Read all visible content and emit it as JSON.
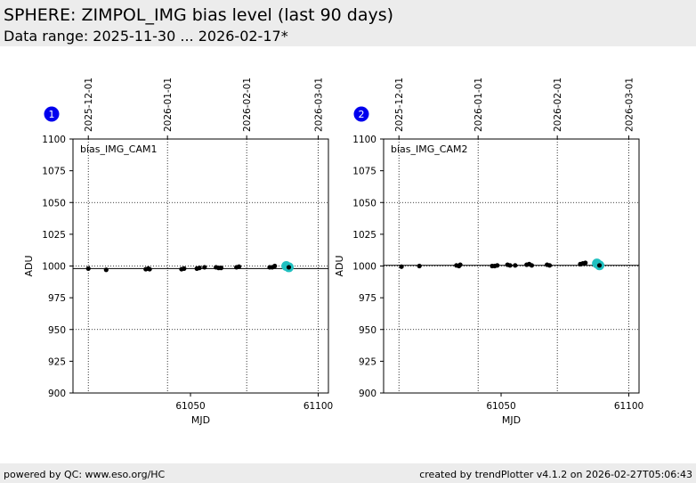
{
  "header": {
    "title": "SPHERE: ZIMPOL_IMG bias level (last 90 days)",
    "subtitle": "Data range: 2025-11-30 ... 2026-02-17*"
  },
  "footer": {
    "left": "powered by QC: www.eso.org/HC",
    "right": "created by trendPlotter v4.1.2 on 2026-02-27T05:06:43"
  },
  "colors": {
    "point": "#000000",
    "highlight": "#20c0c0",
    "badge": "#0000ee",
    "background_header": "#ececec"
  },
  "chart_data": [
    {
      "type": "scatter",
      "badge": "1",
      "label": "bias_IMG_CAM1",
      "xlabel": "MJD",
      "ylabel": "ADU",
      "xlim": [
        61004,
        61104
      ],
      "ylim": [
        900,
        1100
      ],
      "xticks": [
        61050,
        61100
      ],
      "yticks": [
        900,
        925,
        950,
        975,
        1000,
        1025,
        1050,
        1075,
        1100
      ],
      "top_axis_dates": [
        {
          "label": "2025-12-01",
          "mjd": 61010
        },
        {
          "label": "2026-01-01",
          "mjd": 61041
        },
        {
          "label": "2026-02-01",
          "mjd": 61072
        },
        {
          "label": "2026-03-01",
          "mjd": 61100
        }
      ],
      "reference_line": 998,
      "grid": "dotted",
      "points": [
        {
          "x": 61010,
          "y": 998
        },
        {
          "x": 61017,
          "y": 997
        },
        {
          "x": 61032.5,
          "y": 997.5
        },
        {
          "x": 61033.5,
          "y": 998
        },
        {
          "x": 61034,
          "y": 997.5
        },
        {
          "x": 61046.5,
          "y": 997.5
        },
        {
          "x": 61047.5,
          "y": 998
        },
        {
          "x": 61052.5,
          "y": 998
        },
        {
          "x": 61053.5,
          "y": 998.5
        },
        {
          "x": 61055.5,
          "y": 999
        },
        {
          "x": 61060,
          "y": 999
        },
        {
          "x": 61061,
          "y": 998.5
        },
        {
          "x": 61062,
          "y": 998.5
        },
        {
          "x": 61068,
          "y": 999
        },
        {
          "x": 61069,
          "y": 999.5
        },
        {
          "x": 61081,
          "y": 999
        },
        {
          "x": 61082,
          "y": 999
        },
        {
          "x": 61083,
          "y": 1000
        },
        {
          "x": 61088.5,
          "y": 999
        }
      ],
      "highlight": [
        {
          "x": 61087.5,
          "y": 1000
        },
        {
          "x": 61088.5,
          "y": 999
        }
      ]
    },
    {
      "type": "scatter",
      "badge": "2",
      "label": "bias_IMG_CAM2",
      "xlabel": "MJD",
      "ylabel": "ADU",
      "xlim": [
        61004,
        61104
      ],
      "ylim": [
        900,
        1100
      ],
      "xticks": [
        61050,
        61100
      ],
      "yticks": [
        900,
        925,
        950,
        975,
        1000,
        1025,
        1050,
        1075,
        1100
      ],
      "top_axis_dates": [
        {
          "label": "2025-12-01",
          "mjd": 61010
        },
        {
          "label": "2026-01-01",
          "mjd": 61041
        },
        {
          "label": "2026-02-01",
          "mjd": 61072
        },
        {
          "label": "2026-03-01",
          "mjd": 61100
        }
      ],
      "reference_line": 1000.5,
      "grid": "dotted",
      "points": [
        {
          "x": 61011,
          "y": 999.5
        },
        {
          "x": 61018,
          "y": 1000
        },
        {
          "x": 61032.5,
          "y": 1000.5
        },
        {
          "x": 61033.5,
          "y": 1000
        },
        {
          "x": 61034,
          "y": 1001
        },
        {
          "x": 61046.5,
          "y": 1000
        },
        {
          "x": 61047.5,
          "y": 1000
        },
        {
          "x": 61048.5,
          "y": 1000.5
        },
        {
          "x": 61052.5,
          "y": 1001
        },
        {
          "x": 61053.5,
          "y": 1000.5
        },
        {
          "x": 61055.5,
          "y": 1000.5
        },
        {
          "x": 61060,
          "y": 1001
        },
        {
          "x": 61061,
          "y": 1001.5
        },
        {
          "x": 61062,
          "y": 1000.5
        },
        {
          "x": 61068,
          "y": 1001
        },
        {
          "x": 61069,
          "y": 1000.5
        },
        {
          "x": 61081,
          "y": 1001.5
        },
        {
          "x": 61082,
          "y": 1002
        },
        {
          "x": 61083,
          "y": 1002.5
        },
        {
          "x": 61088.5,
          "y": 1000.5
        }
      ],
      "highlight": [
        {
          "x": 61087.5,
          "y": 1002
        },
        {
          "x": 61088.5,
          "y": 1000.5
        }
      ]
    }
  ]
}
